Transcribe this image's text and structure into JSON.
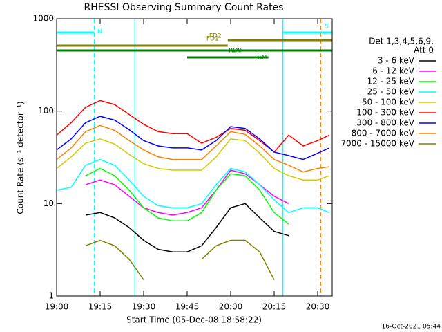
{
  "chart_data": {
    "type": "line",
    "title": "RHESSI Observing Summary Count Rates",
    "xlabel": "Start Time (05-Dec-08 18:58:22)",
    "ylabel": "Count Rate (s⁻¹ detector⁻¹)",
    "footer": "16-Oct-2021 05:44",
    "legend_header": [
      "Det 1,3,4,5,6,9,",
      "Att 0"
    ],
    "log_scale": true,
    "xlim": [
      "19:00",
      "20:35"
    ],
    "xticks": [
      "19:00",
      "19:15",
      "19:30",
      "19:45",
      "20:00",
      "20:15",
      "20:30"
    ],
    "ylim": [
      1,
      1000
    ],
    "yticks": [
      1,
      10,
      100,
      1000
    ],
    "x": [
      "19:00",
      "19:05",
      "19:10",
      "19:15",
      "19:20",
      "19:25",
      "19:30",
      "19:35",
      "19:40",
      "19:45",
      "19:50",
      "19:55",
      "20:00",
      "20:05",
      "20:10",
      "20:15",
      "20:20",
      "20:25",
      "20:30",
      "20:34"
    ],
    "series": [
      {
        "name": "3 - 6 keV",
        "color": "#000000",
        "values": [
          null,
          null,
          7.5,
          8,
          7,
          5.5,
          4,
          3.2,
          3,
          3,
          3.5,
          5.5,
          9,
          10,
          7,
          5,
          4.5,
          null,
          null,
          null
        ]
      },
      {
        "name": "6 - 12 keV",
        "color": "#ff00ff",
        "values": [
          null,
          null,
          16,
          18,
          16,
          12,
          9,
          8,
          7.5,
          8,
          9,
          14,
          23,
          21,
          16,
          12,
          10,
          null,
          null,
          null
        ]
      },
      {
        "name": "12 - 25 keV",
        "color": "#00ff00",
        "values": [
          null,
          null,
          20,
          24,
          20,
          14,
          9,
          7,
          6.5,
          6.5,
          8,
          14,
          21,
          20,
          14,
          8,
          6,
          null,
          null,
          null
        ]
      },
      {
        "name": "25 - 50 keV",
        "color": "#00ffff",
        "values": [
          14,
          15,
          26,
          30,
          26,
          18,
          12,
          9.5,
          9,
          9,
          10,
          16,
          24,
          22,
          16,
          11,
          8,
          9,
          9,
          8
        ]
      },
      {
        "name": "50 - 100 keV",
        "color": "#cccc00",
        "values": [
          24,
          32,
          45,
          50,
          44,
          34,
          27,
          24,
          23,
          23,
          23,
          32,
          50,
          48,
          35,
          24,
          20,
          18,
          18,
          20
        ]
      },
      {
        "name": "100 - 300 keV",
        "color": "#ff0000",
        "values": [
          55,
          75,
          110,
          130,
          118,
          92,
          72,
          60,
          57,
          57,
          45,
          52,
          65,
          62,
          48,
          36,
          55,
          42,
          48,
          55
        ]
      },
      {
        "name": "300 - 800 keV",
        "color": "#0000ff",
        "values": [
          38,
          50,
          75,
          88,
          80,
          63,
          48,
          42,
          40,
          40,
          38,
          48,
          68,
          65,
          50,
          36,
          33,
          30,
          35,
          40
        ]
      },
      {
        "name": "800 - 7000 keV",
        "color": "#ff8000",
        "values": [
          30,
          40,
          60,
          70,
          62,
          48,
          38,
          32,
          30,
          30,
          30,
          42,
          60,
          56,
          42,
          30,
          26,
          22,
          24,
          25
        ]
      },
      {
        "name": "7000 - 15000 keV",
        "color": "#808000",
        "values": [
          null,
          null,
          3.5,
          4,
          3.5,
          2.5,
          1.5,
          null,
          null,
          null,
          2.5,
          3.5,
          4,
          4,
          3,
          1.5,
          null,
          null,
          null,
          null
        ]
      }
    ],
    "flags": [
      {
        "label": "N",
        "color": "#00ffff",
        "segments": [
          [
            "19:00",
            "19:13"
          ]
        ]
      },
      {
        "label": "S",
        "color": "#00ffff",
        "segments": [
          [
            "20:18",
            "20:35"
          ]
        ]
      },
      {
        "label": "FD2",
        "color": "#808000",
        "segments": [
          [
            "19:59",
            "20:35"
          ]
        ]
      },
      {
        "label": "FD1",
        "color": "#808000",
        "segments": [
          [
            "19:00",
            "19:59"
          ]
        ]
      },
      {
        "label": "RD0",
        "color": "#008000",
        "segments": [
          [
            "19:00",
            "20:13"
          ],
          [
            "20:13",
            "20:35"
          ]
        ]
      },
      {
        "label": "RD4",
        "color": "#008000",
        "segments": [
          [
            "19:45",
            "20:13"
          ]
        ]
      }
    ],
    "markers": [
      {
        "x": "19:13",
        "color": "#00ffff",
        "dashed": true
      },
      {
        "x": "19:27",
        "color": "#00ffff",
        "dashed": false
      },
      {
        "x": "20:18",
        "color": "#00ffff",
        "dashed": false
      },
      {
        "x": "20:31",
        "color": "#ff8000",
        "dashed": true
      }
    ]
  }
}
